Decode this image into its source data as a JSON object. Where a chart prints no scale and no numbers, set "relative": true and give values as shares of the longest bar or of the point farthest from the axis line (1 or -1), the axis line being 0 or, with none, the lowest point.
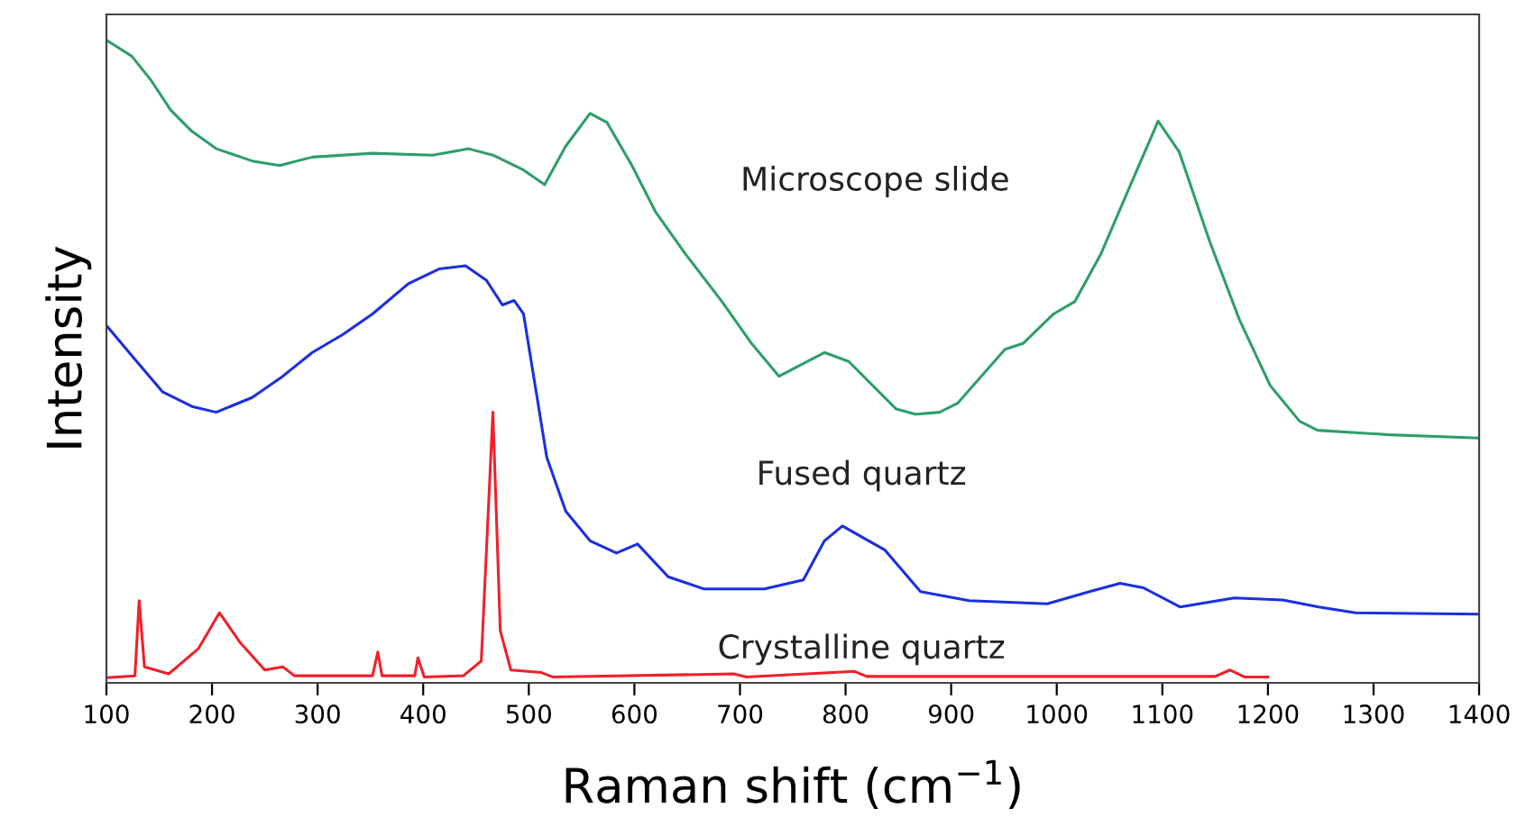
{
  "chart_data": {
    "type": "line",
    "relative": true,
    "xlabel": "Raman shift (cm$^{−1}$)",
    "ylabel": "Intensity",
    "xlim": [
      100,
      1400
    ],
    "xticks": [
      100,
      200,
      300,
      400,
      500,
      600,
      700,
      800,
      900,
      1000,
      1100,
      1200,
      1300,
      1400
    ],
    "series": [
      {
        "name": "Microscope slide",
        "color": "#2e9e6b",
        "x": [
          100,
          124,
          142,
          161,
          181,
          204,
          238,
          264,
          295,
          352,
          409,
          443,
          466,
          495,
          515,
          535,
          558,
          574,
          597,
          620,
          648,
          683,
          711,
          737,
          780,
          803,
          848,
          866,
          889,
          906,
          951,
          968,
          997,
          1017,
          1042,
          1071,
          1096,
          1116,
          1145,
          1173,
          1202,
          1230,
          1247,
          1315,
          1400
        ],
        "values": [
          1.0,
          0.975,
          0.938,
          0.891,
          0.858,
          0.831,
          0.812,
          0.805,
          0.818,
          0.824,
          0.821,
          0.831,
          0.821,
          0.798,
          0.775,
          0.835,
          0.886,
          0.872,
          0.807,
          0.733,
          0.668,
          0.593,
          0.528,
          0.477,
          0.514,
          0.5,
          0.426,
          0.418,
          0.421,
          0.435,
          0.519,
          0.528,
          0.574,
          0.593,
          0.668,
          0.779,
          0.874,
          0.826,
          0.686,
          0.565,
          0.463,
          0.407,
          0.393,
          0.386,
          0.381
        ]
      },
      {
        "name": "Fused quartz",
        "color": "#1a2fe0",
        "x": [
          100,
          124,
          153,
          181,
          204,
          238,
          267,
          295,
          324,
          352,
          386,
          415,
          440,
          460,
          475,
          486,
          495,
          506,
          517,
          535,
          558,
          583,
          603,
          632,
          666,
          723,
          760,
          780,
          797,
          837,
          871,
          917,
          991,
          1031,
          1060,
          1082,
          1117,
          1168,
          1214,
          1248,
          1283,
          1400
        ],
        "values": [
          0.556,
          0.509,
          0.453,
          0.43,
          0.421,
          0.444,
          0.477,
          0.514,
          0.542,
          0.574,
          0.621,
          0.644,
          0.649,
          0.626,
          0.588,
          0.595,
          0.574,
          0.463,
          0.351,
          0.267,
          0.221,
          0.202,
          0.216,
          0.165,
          0.146,
          0.146,
          0.16,
          0.221,
          0.244,
          0.207,
          0.142,
          0.128,
          0.123,
          0.142,
          0.155,
          0.148,
          0.118,
          0.132,
          0.129,
          0.118,
          0.109,
          0.107
        ]
      },
      {
        "name": "Crystalline quartz",
        "color": "#f0202a",
        "x": [
          100,
          127,
          131,
          136,
          159,
          187,
          207,
          227,
          250,
          267,
          278,
          352,
          357,
          361,
          392,
          395,
          401,
          438,
          455,
          466,
          473,
          483,
          512,
          523,
          694,
          706,
          808,
          820,
          1150,
          1164,
          1178,
          1200
        ],
        "values": [
          0.008,
          0.011,
          0.128,
          0.025,
          0.014,
          0.053,
          0.109,
          0.062,
          0.02,
          0.025,
          0.011,
          0.011,
          0.048,
          0.011,
          0.011,
          0.039,
          0.009,
          0.011,
          0.034,
          0.421,
          0.081,
          0.02,
          0.016,
          0.009,
          0.014,
          0.009,
          0.018,
          0.01,
          0.01,
          0.02,
          0.009,
          0.009
        ]
      }
    ]
  }
}
